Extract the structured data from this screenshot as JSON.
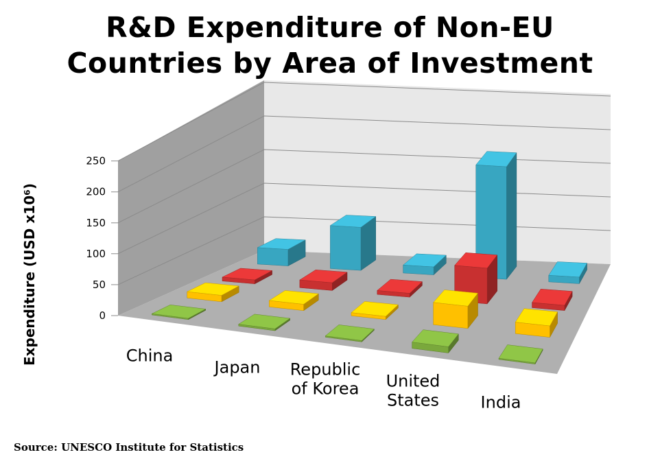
{
  "chart_data": {
    "type": "bar",
    "title_lines": [
      "R&D Expenditure of Non-EU",
      "Countries by Area of Investment"
    ],
    "ylabel": "Expenditure (USD x10⁶)",
    "xlabel": "",
    "ylim": [
      0,
      250
    ],
    "yticks": [
      "0",
      "50",
      "100",
      "150",
      "200",
      "250"
    ],
    "categories": [
      [
        "China"
      ],
      [
        "Japan"
      ],
      [
        "Republic",
        "of Korea"
      ],
      [
        "United",
        "States"
      ],
      [
        "India"
      ]
    ],
    "series": [
      {
        "color": "#38a6c1",
        "values": [
          25,
          65,
          12,
          170,
          10
        ]
      },
      {
        "color": "#c83030",
        "values": [
          6,
          12,
          6,
          55,
          8
        ]
      },
      {
        "color": "#ffc000",
        "values": [
          10,
          10,
          5,
          35,
          18
        ]
      },
      {
        "color": "#7aa83c",
        "values": [
          2,
          3,
          2,
          10,
          2
        ]
      }
    ],
    "grid": true,
    "source": "Source: UNESCO Institute for Statistics"
  }
}
